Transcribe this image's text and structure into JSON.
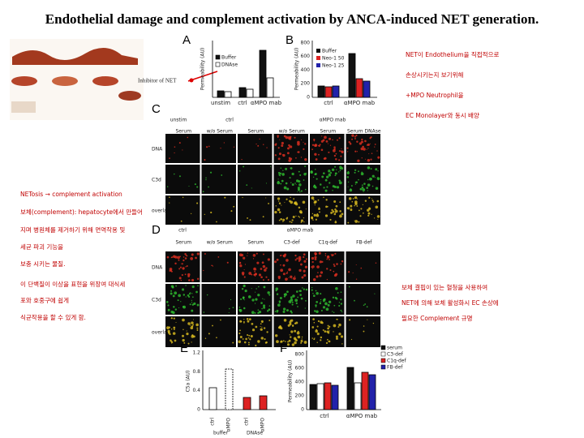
{
  "title": "Endothelial damage and complement activation by ANCA-induced NET generation.",
  "annotation_inhibitor": "Inhibitor of NET",
  "notes_right_top": [
    "NET이 Endothelium을 직접적으로",
    "손상시키는지 보기위해",
    "+MPO Neutrophil을",
    "EC Monolayer와 동시 배양"
  ],
  "notes_left": [
    "NETosis → complement activation",
    "보체(complement): hepatocyte에서 만들어",
    "지며 병원체를 제거하기 위해 면역작용 및",
    "세균 파괴 기능을",
    "보충 시키는 물질.",
    "이 단백질이 이상을 표현을 위장여 대식세",
    "포와 호중구에 쉽게",
    "식균작용을 할 수 있게 함."
  ],
  "notes_right_bottom": [
    "보체 결핍이 있는 혈청을 사용하여",
    "NET에 의해 보체 활성화시 EC 손상에",
    "필요한 Complement 규명"
  ],
  "panel_a": {
    "label": "A",
    "y_label": "Permeability (AU)",
    "legend": [
      "Buffer",
      "DNAse"
    ],
    "categories": [
      "unstim",
      "ctrl",
      "αMPO mab"
    ]
  },
  "panel_b": {
    "label": "B",
    "y_label": "Permeability (AU)",
    "yticks": [
      "800",
      "600",
      "400",
      "200",
      "0"
    ],
    "legend": [
      "Buffer",
      "Neo-1 50",
      "Neo-1 25"
    ],
    "categories": [
      "ctrl",
      "αMPO mab"
    ]
  },
  "panel_c": {
    "label": "C",
    "headers": [
      "unstim",
      "ctrl",
      "αMPO mab"
    ],
    "columns": [
      "Serum",
      "w/o Serum",
      "Serum",
      "w/o Serum",
      "Serum",
      "Serum DNAse"
    ],
    "rows": [
      "DNA",
      "C3d",
      "overlay"
    ]
  },
  "panel_d": {
    "label": "D",
    "headers": [
      "ctrl",
      "αMPO mab"
    ],
    "columns": [
      "Serum",
      "w/o Serum",
      "Serum",
      "C3-def",
      "C1q-def",
      "FB-def"
    ],
    "rows": [
      "DNA",
      "C3d",
      "overlay"
    ]
  },
  "panel_e": {
    "label": "E",
    "y_label": "C5a (AU)",
    "yticks": [
      "1.2",
      "0.8",
      "0.4",
      "0"
    ],
    "categories": [
      "ctrl",
      "αMPO",
      "ctrl",
      "αMPO"
    ],
    "groups": [
      "buffer",
      "DNAse"
    ]
  },
  "panel_f": {
    "label": "F",
    "y_label": "Permeability (AU)",
    "yticks": [
      "800",
      "600",
      "400",
      "200",
      "0"
    ],
    "legend": [
      "serum",
      "C3-def",
      "C1q-def",
      "FB-def"
    ],
    "categories": [
      "ctrl",
      "αMPO mab"
    ]
  }
}
